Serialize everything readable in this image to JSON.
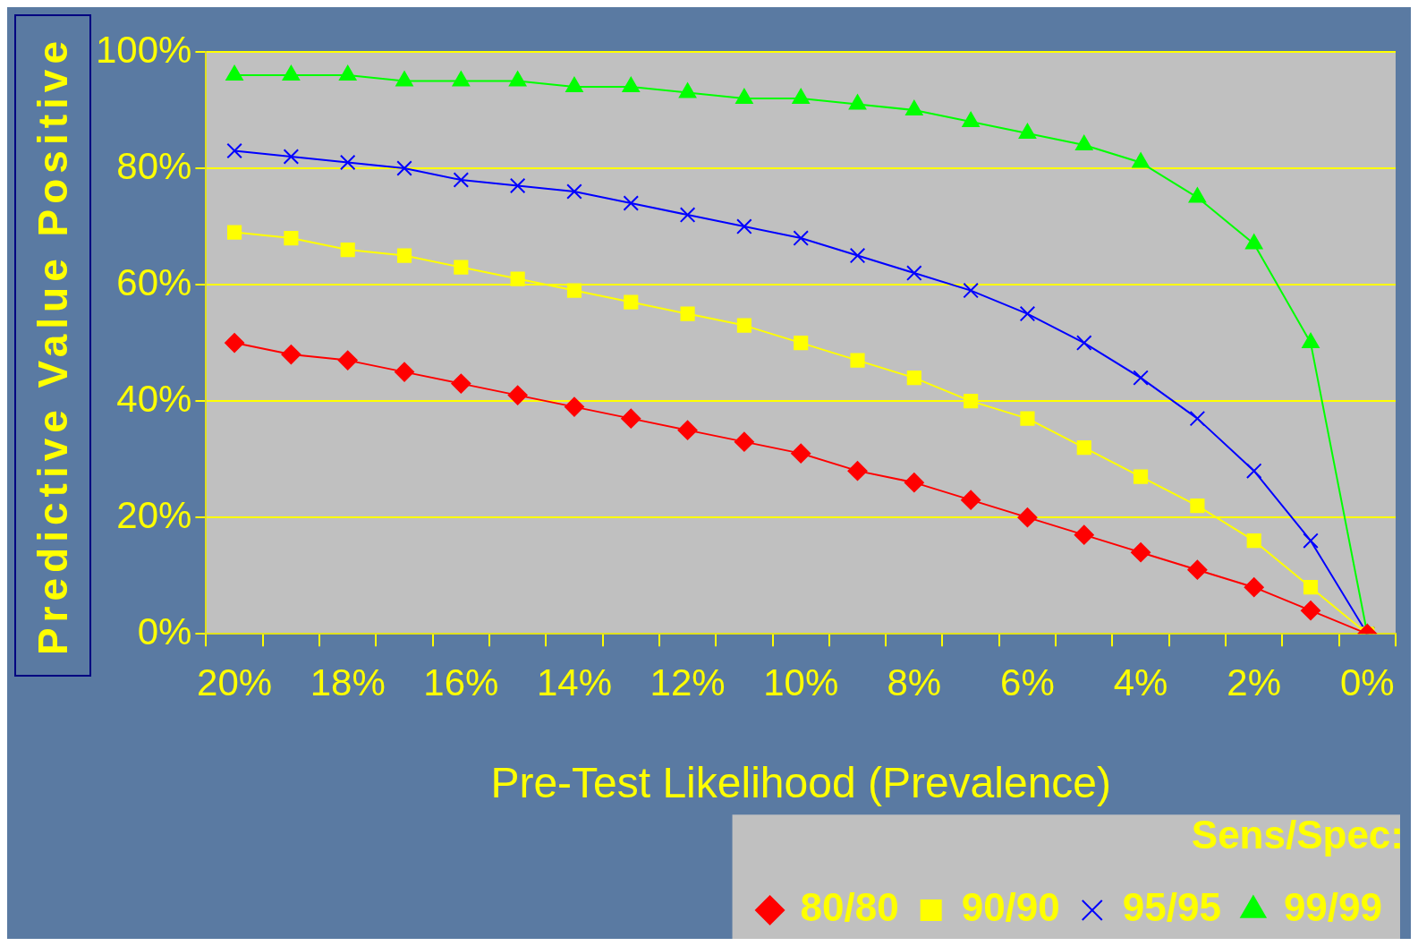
{
  "chart_data": {
    "type": "line",
    "categories": [
      "20%",
      null,
      "18%",
      null,
      "16%",
      null,
      "14%",
      null,
      "12%",
      null,
      "10%",
      null,
      "8%",
      null,
      "6%",
      null,
      "4%",
      null,
      "2%",
      null,
      "0%"
    ],
    "xlabel": "Pre-Test Likelihood (Prevalence)",
    "ylabel": "Predictive Value Positive",
    "legend_title": "Sens/Spec:",
    "ylim": [
      0,
      100
    ],
    "yticks": [
      {
        "value": 0,
        "label": "0%"
      },
      {
        "value": 20,
        "label": "20%"
      },
      {
        "value": 40,
        "label": "40%"
      },
      {
        "value": 60,
        "label": "60%"
      },
      {
        "value": 80,
        "label": "80%"
      },
      {
        "value": 100,
        "label": "100%"
      }
    ],
    "grid": "y",
    "legend": "bottom",
    "line_style": "solid",
    "series": [
      {
        "name": "80/80",
        "color": "#ff0000",
        "marker": "diamond",
        "values": [
          50,
          48,
          47,
          45,
          43,
          41,
          39,
          37,
          35,
          33,
          31,
          28,
          26,
          23,
          20,
          17,
          14,
          11,
          8,
          4,
          0
        ]
      },
      {
        "name": "90/90",
        "color": "#ffff00",
        "marker": "square",
        "values": [
          69,
          68,
          66,
          65,
          63,
          61,
          59,
          57,
          55,
          53,
          50,
          47,
          44,
          40,
          37,
          32,
          27,
          22,
          16,
          8,
          0
        ]
      },
      {
        "name": "95/95",
        "color": "#0000ff",
        "marker": "cross",
        "values": [
          83,
          82,
          81,
          80,
          78,
          77,
          76,
          74,
          72,
          70,
          68,
          65,
          62,
          59,
          55,
          50,
          44,
          37,
          28,
          16,
          0
        ]
      },
      {
        "name": "99/99",
        "color": "#00ff00",
        "marker": "triangle",
        "values": [
          96,
          96,
          96,
          95,
          95,
          95,
          94,
          94,
          93,
          92,
          92,
          91,
          90,
          88,
          86,
          84,
          81,
          75,
          67,
          50,
          0
        ]
      }
    ]
  }
}
